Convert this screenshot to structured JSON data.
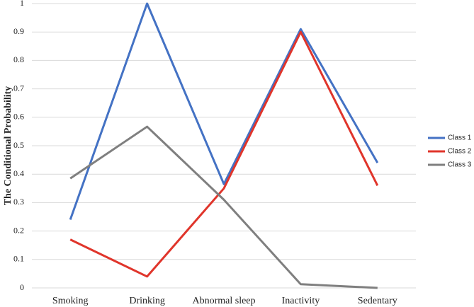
{
  "chart_data": {
    "type": "line",
    "y_label": "The Conditional Probability",
    "categories": [
      "Smoking",
      "Drinking",
      "Abnormal sleep",
      "Inactivity",
      "Sedentary"
    ],
    "series": [
      {
        "name": "Class 1",
        "color": "#4472c4",
        "values": [
          0.24,
          1.0,
          0.365,
          0.91,
          0.44
        ]
      },
      {
        "name": "Class 2",
        "color": "#e0352b",
        "values": [
          0.17,
          0.04,
          0.35,
          0.9,
          0.36
        ]
      },
      {
        "name": "Class 3",
        "color": "#7f7f7f",
        "values": [
          0.385,
          0.567,
          0.31,
          0.013,
          0.0
        ]
      }
    ],
    "ylim": [
      0,
      1
    ],
    "yticks": [
      0,
      0.1,
      0.2,
      0.3,
      0.4,
      0.5,
      0.6,
      0.7,
      0.8,
      0.9,
      1
    ],
    "grid": true,
    "legend": "right"
  }
}
